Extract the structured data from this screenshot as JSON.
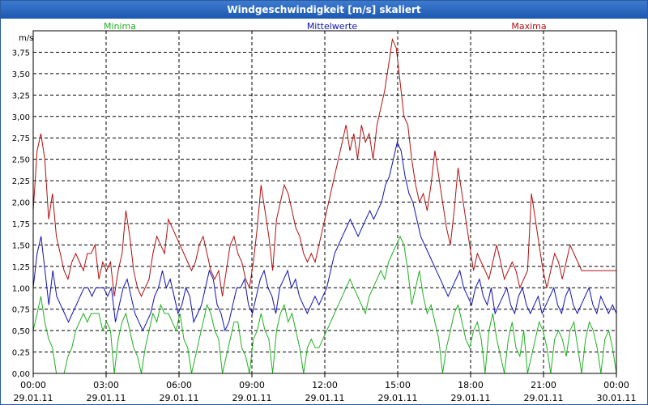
{
  "window": {
    "title": "Windgeschwindigkeit [m/s] skaliert"
  },
  "chart_data": {
    "type": "line",
    "title": "Windgeschwindigkeit [m/s] skaliert",
    "ylabel": "m/s",
    "ylim": [
      0,
      4.0
    ],
    "yticks": [
      "0,00",
      "0,25",
      "0,50",
      "0,75",
      "1,00",
      "1,25",
      "1,50",
      "1,75",
      "2,00",
      "2,25",
      "2,50",
      "2,75",
      "3,00",
      "3,25",
      "3,50",
      "3,75"
    ],
    "xticks": [
      {
        "time": "00:00",
        "date": "29.01.11"
      },
      {
        "time": "03:00",
        "date": "29.01.11"
      },
      {
        "time": "06:00",
        "date": "29.01.11"
      },
      {
        "time": "09:00",
        "date": "29.01.11"
      },
      {
        "time": "12:00",
        "date": "29.01.11"
      },
      {
        "time": "15:00",
        "date": "29.01.11"
      },
      {
        "time": "18:00",
        "date": "29.01.11"
      },
      {
        "time": "21:00",
        "date": "29.01.11"
      },
      {
        "time": "00:00",
        "date": "30.01.11"
      }
    ],
    "xlim_hours": [
      0,
      24
    ],
    "grid": true,
    "series": [
      {
        "name": "Minima",
        "color": "#20b020",
        "values": [
          0.5,
          0.7,
          0.9,
          0.6,
          0.4,
          0.3,
          0.0,
          0.0,
          0.0,
          0.2,
          0.3,
          0.5,
          0.6,
          0.7,
          0.6,
          0.7,
          0.7,
          0.7,
          0.5,
          0.6,
          0.5,
          0.0,
          0.4,
          0.6,
          0.7,
          0.5,
          0.3,
          0.2,
          0.0,
          0.3,
          0.5,
          0.7,
          0.6,
          0.8,
          0.7,
          0.7,
          0.6,
          0.5,
          0.7,
          0.4,
          0.3,
          0.0,
          0.2,
          0.4,
          0.6,
          0.8,
          0.7,
          0.5,
          0.4,
          0.0,
          0.2,
          0.4,
          0.6,
          0.6,
          0.3,
          0.2,
          0.0,
          0.4,
          0.5,
          0.7,
          0.5,
          0.4,
          0.0,
          0.5,
          0.7,
          0.8,
          0.6,
          0.7,
          0.5,
          0.3,
          0.0,
          0.3,
          0.4,
          0.3,
          0.3,
          0.4,
          0.5,
          0.6,
          0.7,
          0.8,
          0.9,
          1.0,
          1.1,
          1.0,
          0.9,
          0.8,
          0.7,
          0.9,
          1.0,
          1.1,
          1.2,
          1.1,
          1.3,
          1.4,
          1.5,
          1.6,
          1.5,
          1.2,
          0.8,
          1.0,
          1.2,
          0.9,
          0.7,
          0.8,
          0.6,
          0.4,
          0.0,
          0.3,
          0.5,
          0.7,
          0.8,
          0.6,
          0.4,
          0.3,
          0.5,
          0.6,
          0.4,
          0.0,
          0.5,
          0.7,
          0.4,
          0.2,
          0.0,
          0.4,
          0.6,
          0.3,
          0.2,
          0.5,
          0.0,
          0.2,
          0.4,
          0.6,
          0.5,
          0.3,
          0.0,
          0.4,
          0.5,
          0.4,
          0.2,
          0.5,
          0.6,
          0.3,
          0.0,
          0.4,
          0.6,
          0.5,
          0.3,
          0.0,
          0.4,
          0.5,
          0.3,
          0.0
        ]
      },
      {
        "name": "Mittelwerte",
        "color": "#1010b0",
        "values": [
          1.0,
          1.4,
          1.6,
          1.2,
          0.8,
          1.2,
          0.9,
          0.8,
          0.7,
          0.6,
          0.7,
          0.8,
          0.9,
          1.0,
          1.0,
          0.9,
          1.0,
          1.0,
          1.0,
          0.9,
          1.0,
          0.6,
          0.8,
          1.0,
          1.1,
          0.9,
          0.7,
          0.6,
          0.5,
          0.6,
          0.7,
          0.9,
          1.0,
          1.2,
          1.0,
          1.1,
          0.9,
          0.7,
          0.8,
          1.0,
          0.9,
          0.6,
          0.7,
          0.8,
          1.0,
          1.2,
          1.1,
          0.8,
          0.7,
          0.5,
          0.6,
          0.8,
          1.0,
          1.0,
          1.1,
          0.8,
          0.7,
          0.9,
          1.1,
          1.2,
          1.0,
          0.9,
          0.7,
          1.0,
          1.1,
          1.2,
          1.0,
          1.1,
          0.9,
          0.8,
          0.7,
          0.8,
          0.9,
          0.8,
          0.9,
          1.0,
          1.2,
          1.4,
          1.5,
          1.6,
          1.7,
          1.8,
          1.7,
          1.6,
          1.7,
          1.8,
          1.9,
          1.8,
          1.9,
          2.0,
          2.2,
          2.3,
          2.5,
          2.7,
          2.6,
          2.3,
          2.1,
          2.0,
          1.8,
          1.6,
          1.5,
          1.4,
          1.3,
          1.2,
          1.1,
          1.0,
          0.9,
          1.0,
          1.1,
          1.2,
          1.0,
          0.9,
          0.8,
          1.0,
          1.1,
          0.9,
          0.8,
          1.0,
          0.7,
          0.8,
          0.9,
          1.0,
          0.8,
          0.7,
          0.9,
          1.0,
          0.8,
          0.7,
          0.8,
          0.9,
          0.7,
          0.8,
          0.9,
          1.0,
          0.8,
          0.7,
          0.9,
          1.0,
          0.8,
          0.7,
          0.8,
          0.9,
          1.0,
          0.8,
          0.7,
          0.9,
          0.8,
          0.7,
          0.8,
          0.7
        ]
      },
      {
        "name": "Maxima",
        "color": "#b01010",
        "values": [
          1.9,
          2.6,
          2.8,
          2.5,
          1.8,
          2.1,
          1.6,
          1.4,
          1.2,
          1.1,
          1.3,
          1.4,
          1.3,
          1.2,
          1.4,
          1.4,
          1.5,
          1.1,
          1.3,
          1.2,
          1.3,
          0.9,
          1.2,
          1.4,
          1.9,
          1.6,
          1.2,
          1.0,
          0.9,
          1.0,
          1.1,
          1.4,
          1.6,
          1.5,
          1.4,
          1.8,
          1.7,
          1.6,
          1.5,
          1.4,
          1.3,
          1.2,
          1.3,
          1.5,
          1.6,
          1.4,
          1.2,
          1.1,
          1.2,
          0.9,
          1.2,
          1.5,
          1.6,
          1.4,
          1.3,
          1.1,
          1.0,
          1.3,
          1.7,
          2.2,
          1.9,
          1.6,
          1.2,
          1.8,
          2.0,
          2.2,
          2.1,
          1.9,
          1.7,
          1.6,
          1.4,
          1.3,
          1.4,
          1.3,
          1.5,
          1.7,
          1.9,
          2.1,
          2.3,
          2.5,
          2.7,
          2.9,
          2.6,
          2.8,
          2.5,
          2.9,
          2.7,
          2.8,
          2.5,
          2.9,
          3.1,
          3.3,
          3.6,
          3.9,
          3.8,
          3.4,
          3.0,
          2.9,
          2.5,
          2.2,
          2.0,
          2.1,
          1.9,
          2.2,
          2.6,
          2.3,
          2.0,
          1.7,
          1.5,
          1.9,
          2.4,
          2.1,
          1.8,
          1.5,
          1.2,
          1.4,
          1.3,
          1.2,
          1.1,
          1.3,
          1.5,
          1.3,
          1.1,
          1.2,
          1.3,
          1.2,
          1.0,
          1.1,
          1.2,
          2.1,
          1.8,
          1.5,
          1.2,
          1.0,
          1.2,
          1.4,
          1.3,
          1.1,
          1.3,
          1.5,
          1.4,
          1.3,
          1.2,
          1.2,
          1.2,
          1.2,
          1.2,
          1.2,
          1.2,
          1.2,
          1.2,
          1.2
        ]
      }
    ]
  }
}
